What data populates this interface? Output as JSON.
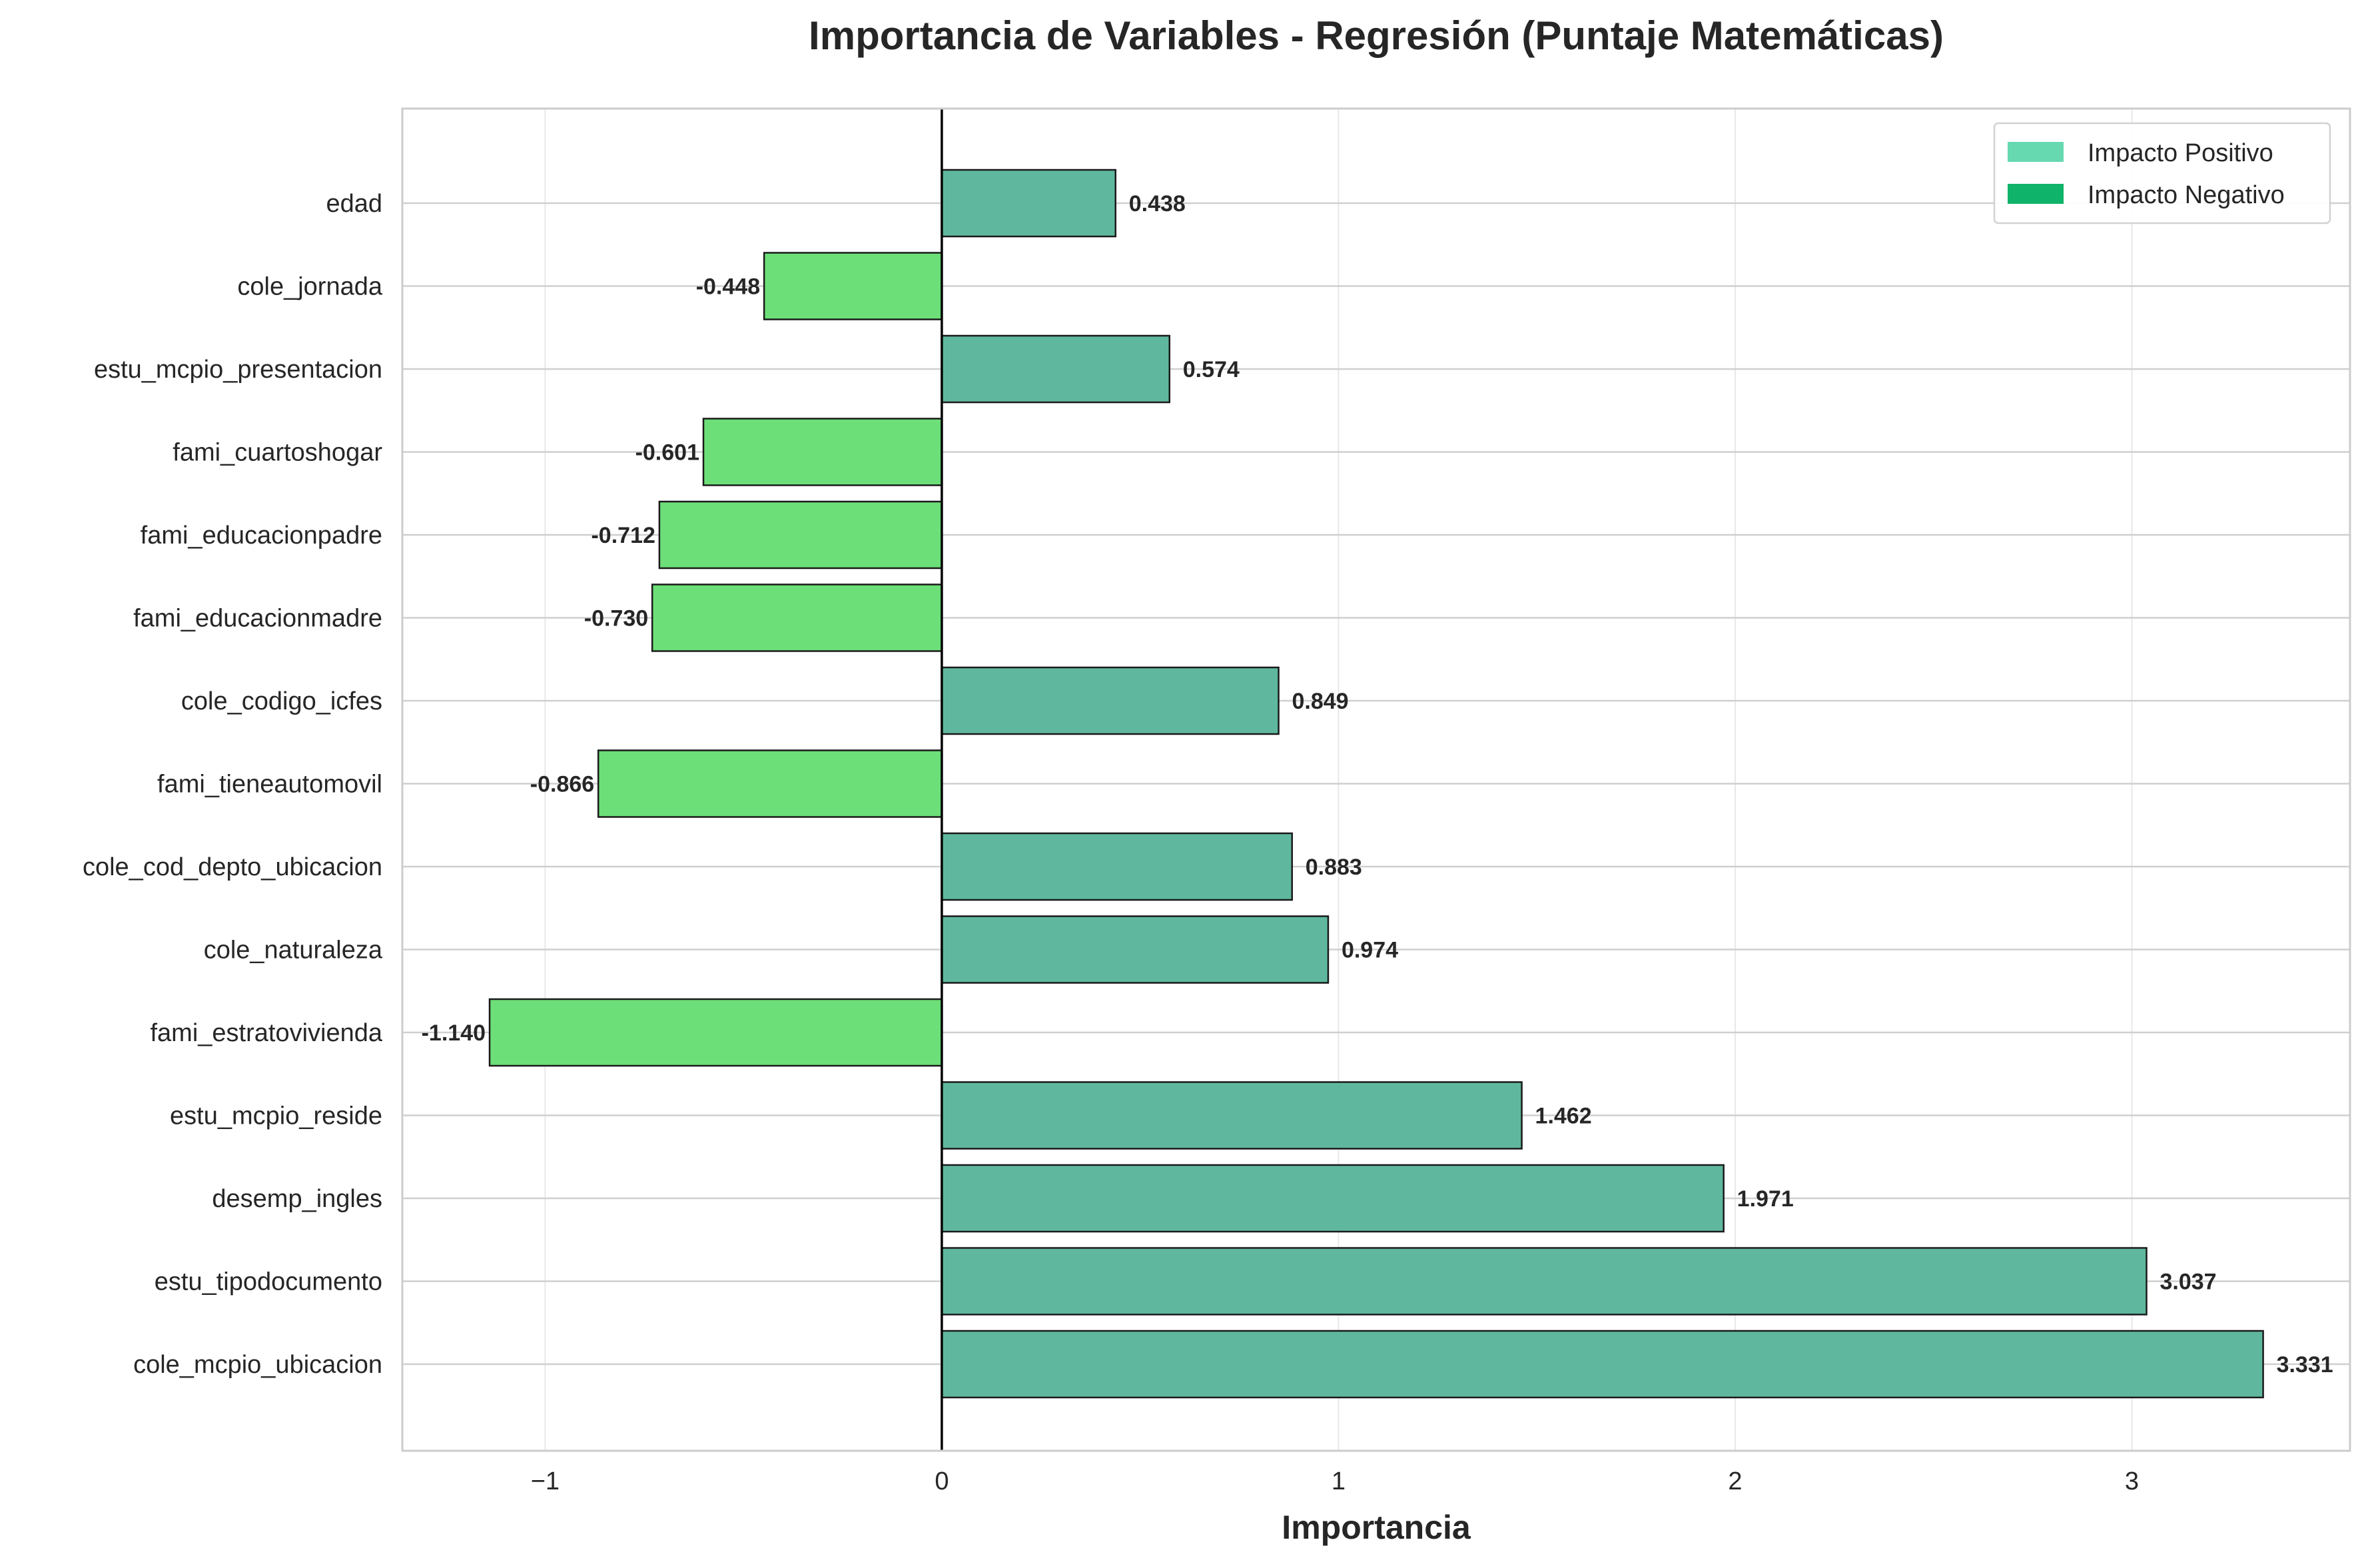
{
  "chart_data": {
    "type": "bar",
    "orientation": "horizontal",
    "title": "Importancia de Variables - Regresión (Puntaje Matemáticas)",
    "xlabel": "Importancia",
    "ylabel": "",
    "xlim": [
      -1.36,
      3.55
    ],
    "xticks": [
      -1,
      0,
      1,
      2,
      3
    ],
    "xtick_labels": [
      "−1",
      "0",
      "1",
      "2",
      "3"
    ],
    "grid": true,
    "legend_position": "top-right",
    "legend": [
      {
        "label": "Impacto Positivo",
        "color": "#66d9b0"
      },
      {
        "label": "Impacto Negativo",
        "color": "#0fb369"
      }
    ],
    "colors": {
      "positive_bar": "#5fb89e",
      "negative_bar": "#6ddf78",
      "bar_edge": "#1a1a1a",
      "zero_line": "#000000"
    },
    "categories": [
      "edad",
      "cole_jornada",
      "estu_mcpio_presentacion",
      "fami_cuartoshogar",
      "fami_educacionpadre",
      "fami_educacionmadre",
      "cole_codigo_icfes",
      "fami_tieneautomovil",
      "cole_cod_depto_ubicacion",
      "cole_naturaleza",
      "fami_estratovivienda",
      "estu_mcpio_reside",
      "desemp_ingles",
      "estu_tipodocumento",
      "cole_mcpio_ubicacion"
    ],
    "values": [
      0.438,
      -0.448,
      0.574,
      -0.601,
      -0.712,
      -0.73,
      0.849,
      -0.866,
      0.883,
      0.974,
      -1.14,
      1.462,
      1.971,
      3.037,
      3.331
    ],
    "value_labels": [
      "0.438",
      "-0.448",
      "0.574",
      "-0.601",
      "-0.712",
      "-0.730",
      "0.849",
      "-0.866",
      "0.883",
      "0.974",
      "-1.140",
      "1.462",
      "1.971",
      "3.037",
      "3.331"
    ]
  }
}
